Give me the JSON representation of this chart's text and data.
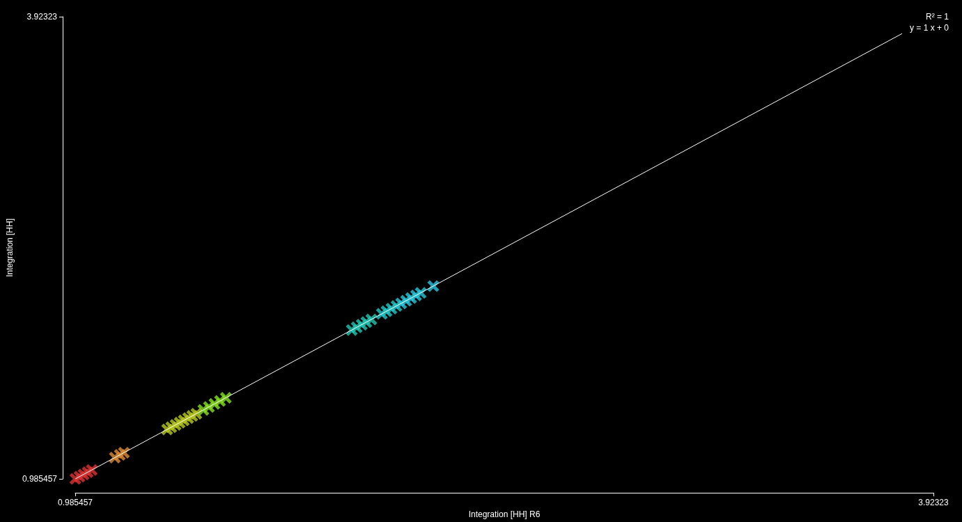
{
  "chart_data": {
    "type": "scatter",
    "xlabel": "Integration [HH] R6",
    "ylabel": "Integration [HH]",
    "xlim": [
      0.985457,
      3.92323
    ],
    "ylim": [
      0.985457,
      3.92323
    ],
    "xticks": [
      0.985457,
      3.92323
    ],
    "yticks": [
      0.985457,
      3.92323
    ],
    "grid": false,
    "marker": "cross",
    "annotations": [
      "R² = 1",
      "y = 1 x + 0"
    ],
    "series": [
      {
        "x": [
          0.986,
          1.0,
          1.014,
          1.028,
          1.042,
          1.121,
          1.138,
          1.152,
          1.3,
          1.314,
          1.329,
          1.343,
          1.357,
          1.372,
          1.386,
          1.4,
          1.424,
          1.443,
          1.462,
          1.481,
          1.501,
          1.932,
          1.949,
          1.966,
          1.982,
          1.999,
          2.035,
          2.051,
          2.068,
          2.085,
          2.101,
          2.118,
          2.135,
          2.152,
          2.168,
          2.211
        ],
        "values": [
          0.986,
          1.0,
          1.014,
          1.028,
          1.042,
          1.121,
          1.138,
          1.152,
          1.3,
          1.314,
          1.329,
          1.343,
          1.357,
          1.372,
          1.386,
          1.4,
          1.424,
          1.443,
          1.462,
          1.481,
          1.501,
          1.932,
          1.949,
          1.966,
          1.982,
          1.999,
          2.035,
          2.051,
          2.068,
          2.085,
          2.101,
          2.118,
          2.135,
          2.152,
          2.168,
          2.211
        ],
        "colors": [
          "#e03232",
          "#e03232",
          "#e03232",
          "#e03232",
          "#e03232",
          "#e08c32",
          "#e08c32",
          "#e08c32",
          "#b8c81e",
          "#b8c81e",
          "#b8c81e",
          "#b8c81e",
          "#b8c81e",
          "#b8c81e",
          "#b8c81e",
          "#b8c81e",
          "#84e01e",
          "#84e01e",
          "#84e01e",
          "#84e01e",
          "#84e01e",
          "#20c8b4",
          "#20c8b4",
          "#20c8b4",
          "#20c8b4",
          "#20c8b4",
          "#22c8c8",
          "#22c8c8",
          "#22c8c8",
          "#22c8c8",
          "#26c8dc",
          "#26c8dc",
          "#26c8dc",
          "#26c8dc",
          "#26c8dc",
          "#28c8e6"
        ]
      },
      {
        "type": "line",
        "color": "#ffffff",
        "marker": "none",
        "x": [
          0.986,
          3.816
        ],
        "values": [
          0.986,
          3.816
        ]
      }
    ]
  }
}
